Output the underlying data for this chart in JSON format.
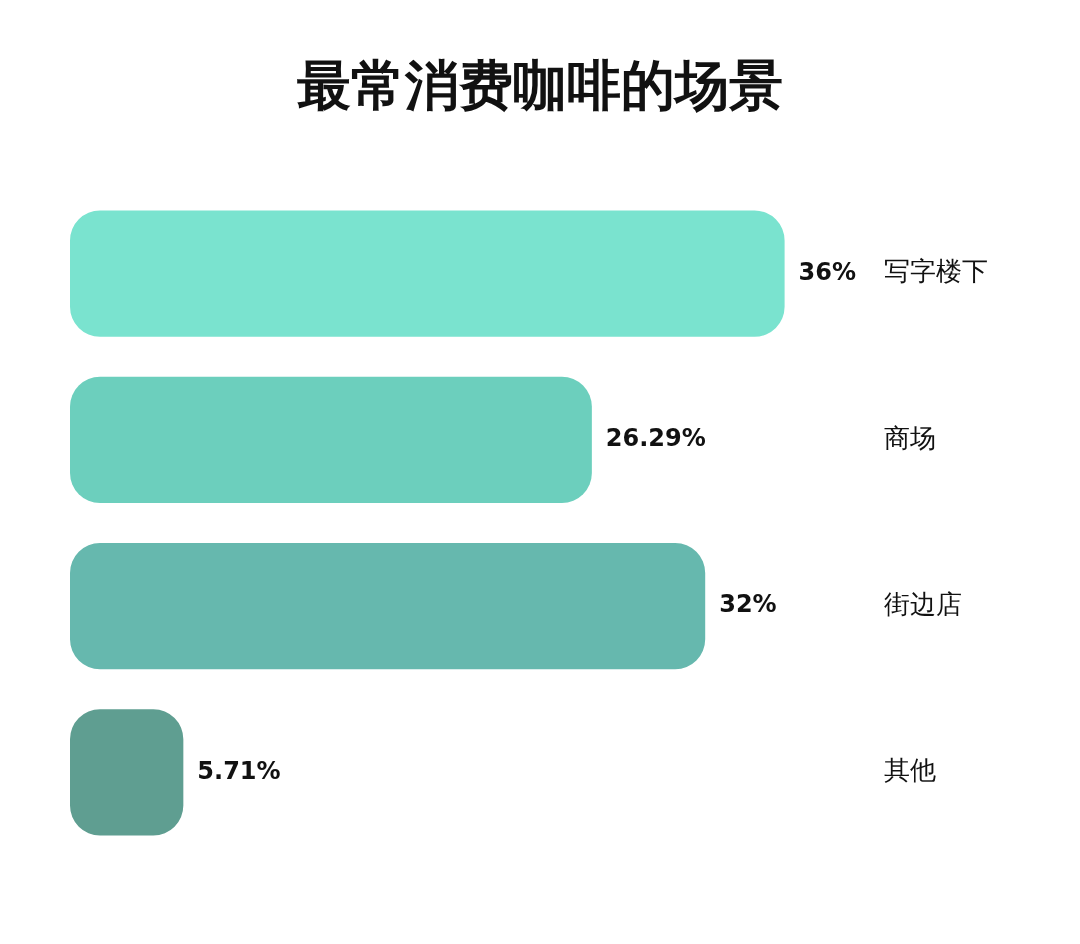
{
  "chart_data": {
    "type": "bar",
    "orientation": "horizontal",
    "title": "最常消费咖啡的场景",
    "categories": [
      "写字楼下",
      "商场",
      "街边店",
      "其他"
    ],
    "values": [
      36,
      26.29,
      32,
      5.71
    ],
    "value_labels": [
      "36%",
      "26.29%",
      "32%",
      "5.71%"
    ],
    "colors": [
      "#7ae3cf",
      "#6ccfbd",
      "#66b8ae",
      "#5f9e91"
    ],
    "grid": false,
    "legend": false
  }
}
